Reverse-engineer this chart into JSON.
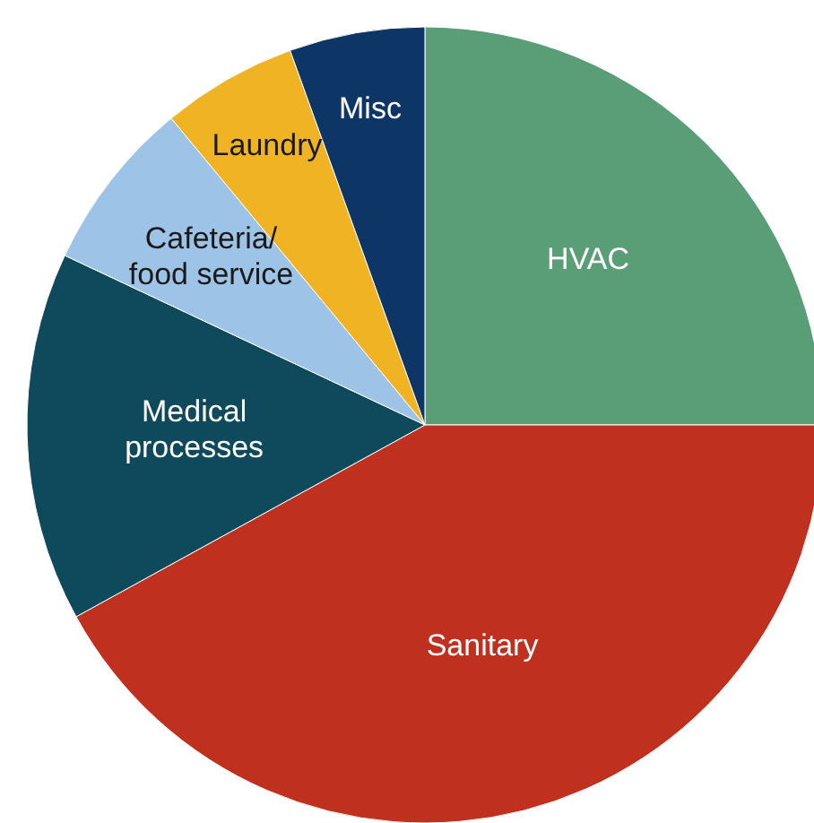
{
  "chart_data": {
    "type": "pie",
    "categories": [
      "HVAC",
      "Sanitary",
      "Medical\nprocesses",
      "Cafeteria/\nfood service",
      "Laundry",
      "Misc"
    ],
    "values": [
      25,
      42,
      15,
      7,
      5.5,
      5.5
    ],
    "colors": [
      "#5a9e78",
      "#c0301f",
      "#0f4a5c",
      "#9dc3e6",
      "#f0b323",
      "#0d3566"
    ]
  }
}
